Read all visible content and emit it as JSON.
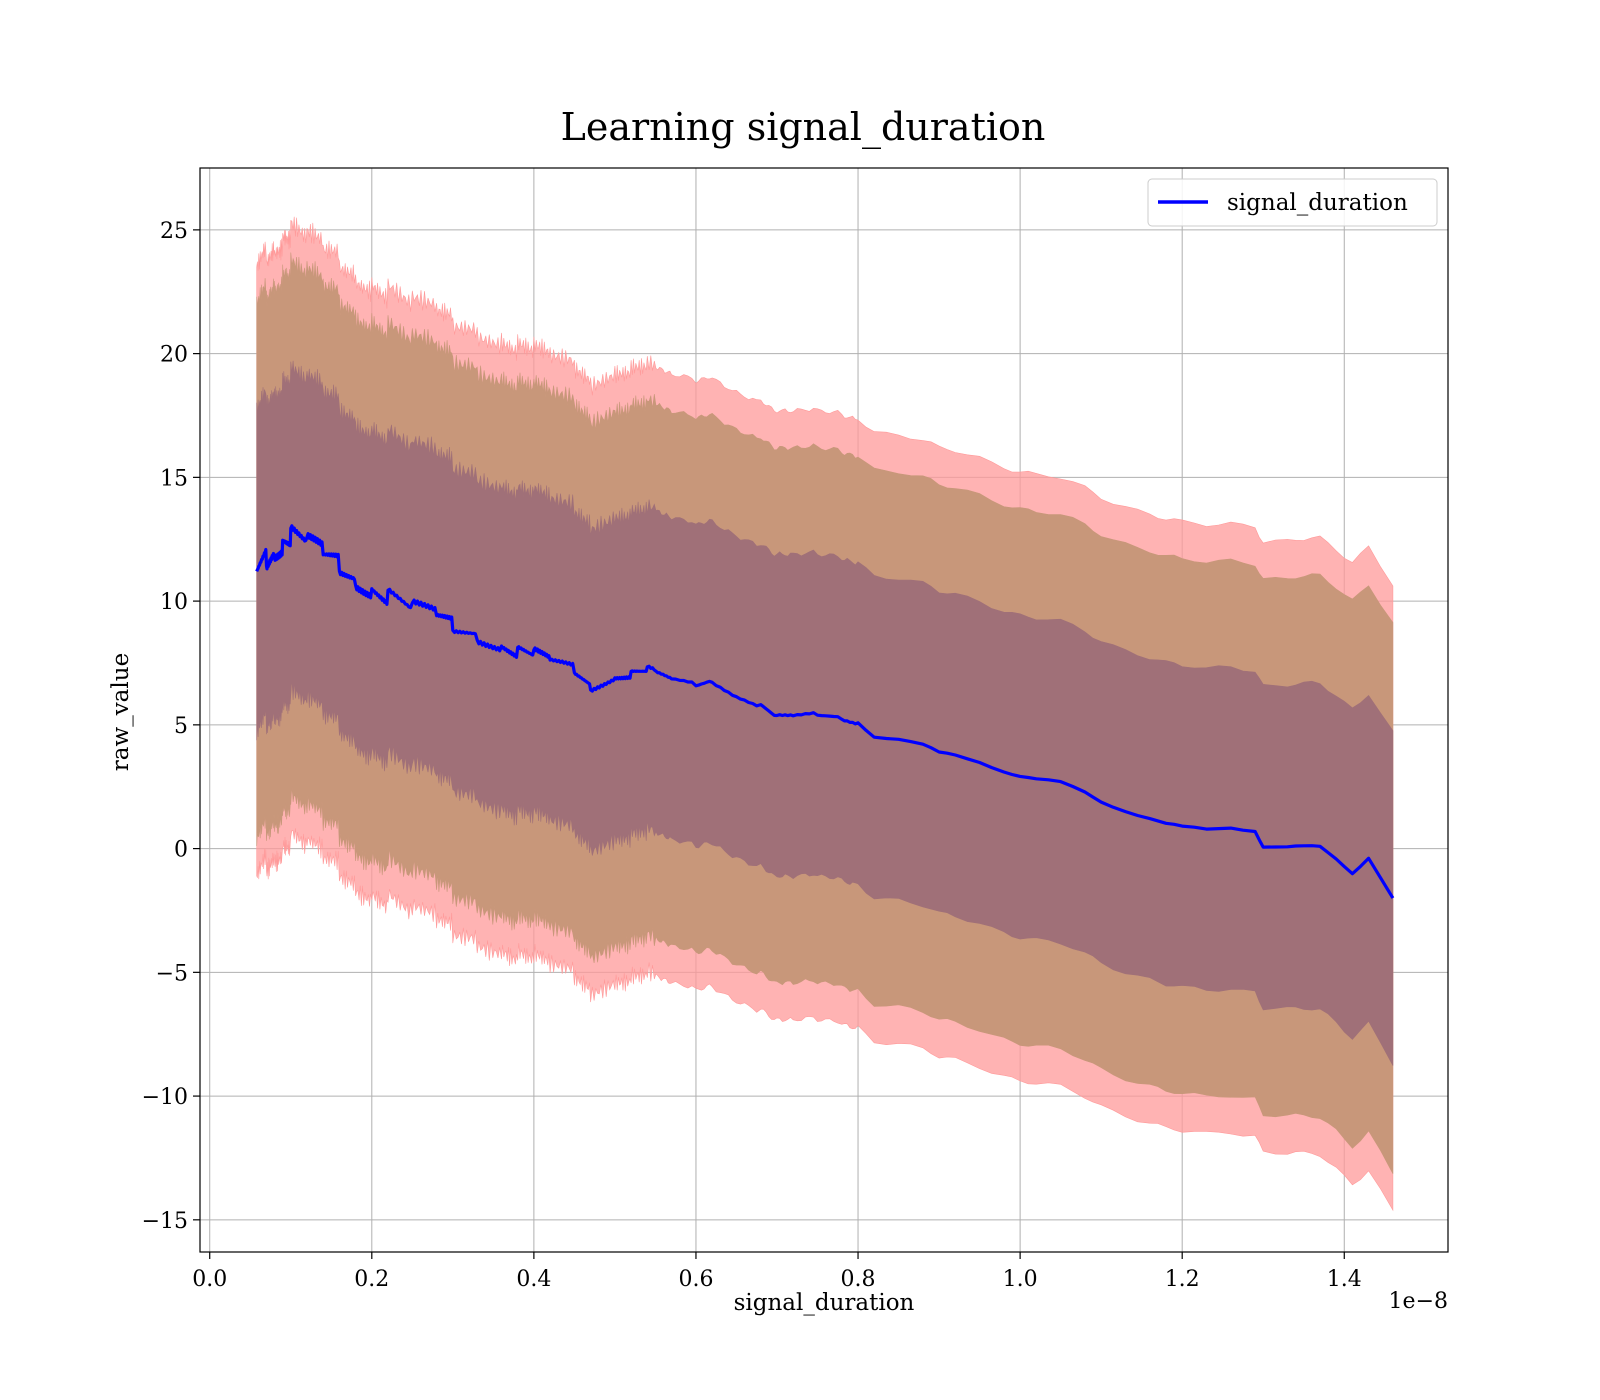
{
  "chart_data": {
    "type": "line",
    "title": "Learning signal_duration",
    "xlabel": "signal_duration",
    "ylabel": "raw_value",
    "x_offset_label": "1e−8",
    "xlim": [
      -0.012,
      1.528
    ],
    "ylim": [
      -16.3,
      27.5
    ],
    "x_ticks": [
      0.0,
      0.2,
      0.4,
      0.6,
      0.8,
      1.0,
      1.2,
      1.4
    ],
    "x_tick_labels": [
      "0.0",
      "0.2",
      "0.4",
      "0.6",
      "0.8",
      "1.0",
      "1.2",
      "1.4"
    ],
    "y_ticks": [
      -15,
      -10,
      -5,
      0,
      5,
      10,
      15,
      20,
      25
    ],
    "y_tick_labels": [
      "−15",
      "−10",
      "−5",
      "0",
      "5",
      "10",
      "15",
      "20",
      "25"
    ],
    "grid": true,
    "legend_position": "top-right",
    "colors": {
      "line": "#0000ff",
      "band_outer": "#ff9999",
      "band_middle": "#c8977a",
      "band_inner": "#a07078",
      "grid": "#b0b0b0"
    },
    "series": [
      {
        "name": "signal_duration",
        "x": [
          0.058,
          0.07,
          0.08,
          0.09,
          0.1,
          0.12,
          0.14,
          0.16,
          0.18,
          0.2,
          0.22,
          0.25,
          0.28,
          0.3,
          0.33,
          0.36,
          0.38,
          0.4,
          0.42,
          0.45,
          0.47,
          0.5,
          0.52,
          0.54,
          0.57,
          0.6,
          0.62,
          0.65,
          0.68,
          0.7,
          0.72,
          0.75,
          0.78,
          0.8,
          0.82,
          0.85,
          0.88,
          0.9,
          0.92,
          0.95,
          0.98,
          1.0,
          1.02,
          1.05,
          1.08,
          1.1,
          1.13,
          1.16,
          1.18,
          1.2,
          1.23,
          1.26,
          1.29,
          1.3,
          1.33,
          1.35,
          1.37,
          1.39,
          1.41,
          1.43,
          1.46
        ],
        "y": [
          11.2,
          11.8,
          12.2,
          12.5,
          12.6,
          12.2,
          11.8,
          11.5,
          11.0,
          10.6,
          10.2,
          9.6,
          9.3,
          9.0,
          8.7,
          8.3,
          8.0,
          7.8,
          7.5,
          7.2,
          6.6,
          7.0,
          7.1,
          7.2,
          6.8,
          6.6,
          6.8,
          6.2,
          5.8,
          5.3,
          5.3,
          5.4,
          5.3,
          5.1,
          4.5,
          4.4,
          4.2,
          3.9,
          3.8,
          3.5,
          3.1,
          2.9,
          2.8,
          2.7,
          2.3,
          1.9,
          1.5,
          1.2,
          1.0,
          0.9,
          0.8,
          0.85,
          0.7,
          0.05,
          0.05,
          0.1,
          0.1,
          -0.4,
          -1.0,
          -0.4,
          -2.0
        ]
      }
    ]
  }
}
